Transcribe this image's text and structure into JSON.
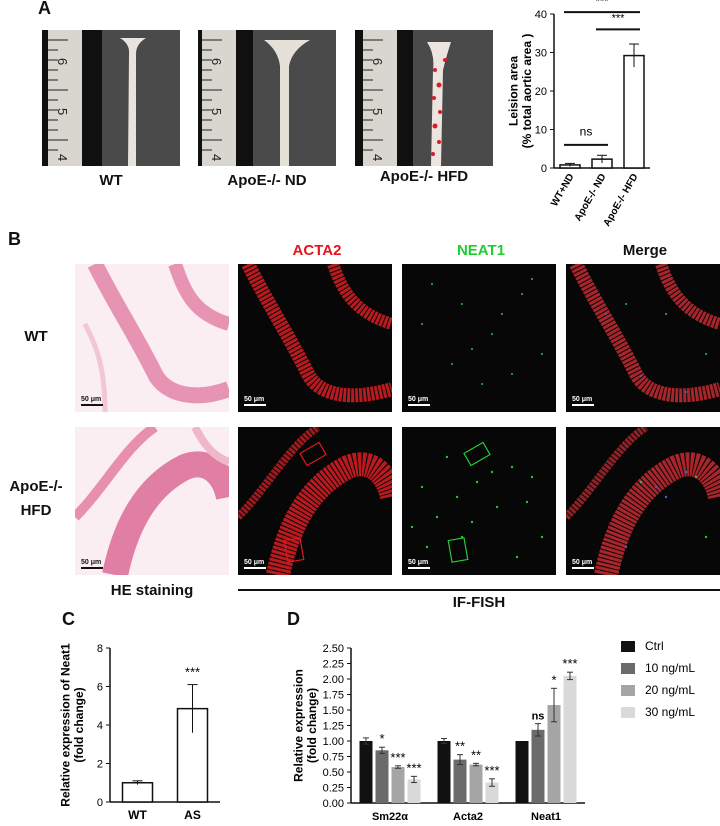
{
  "panels": {
    "a": "A",
    "b": "B",
    "c": "C",
    "d": "D"
  },
  "panel_a": {
    "photo_labels": [
      "WT",
      "ApoE-/- ND",
      "ApoE-/- HFD"
    ],
    "ruler_numbers": [
      "6",
      "5",
      "4"
    ]
  },
  "panel_b": {
    "columns": [
      "ACTA2",
      "NEAT1",
      "Merge"
    ],
    "rows": [
      "WT",
      "ApoE-/-",
      "HFD"
    ],
    "scale_bar": "50 μm",
    "he_label": "HE staining",
    "iffish_label": "IF-FISH",
    "colors": {
      "acta2": "#e8141c",
      "neat1": "#22cc33",
      "merge": "#ffffff"
    }
  },
  "chart_data": [
    {
      "type": "bar",
      "panel": "A",
      "categories": [
        "WT+ND",
        "ApoE-/- ND",
        "ApoE-/- HFD"
      ],
      "values": [
        0.8,
        2.3,
        29.2
      ],
      "errors": [
        0.4,
        1.0,
        3.0
      ],
      "ylabel": "Leision area\n(% total aortic area )",
      "ylim": [
        0,
        40
      ],
      "yticks": [
        0,
        10,
        20,
        30,
        40
      ],
      "significance": [
        {
          "from": 0,
          "to": 1,
          "label": "ns"
        },
        {
          "from": 1,
          "to": 2,
          "label": "***"
        },
        {
          "from": 0,
          "to": 2,
          "label": "***"
        }
      ]
    },
    {
      "type": "bar",
      "panel": "C",
      "categories": [
        "WT",
        "AS"
      ],
      "values": [
        1.0,
        4.85
      ],
      "errors": [
        0.1,
        1.25
      ],
      "ylabel": "Relative expression of Neat1\n(fold change)",
      "ylim": [
        0,
        8
      ],
      "yticks": [
        0,
        2,
        4,
        6,
        8
      ],
      "annotations": [
        "",
        "***"
      ]
    },
    {
      "type": "bar",
      "panel": "D",
      "categories": [
        "Sm22α",
        "Acta2",
        "Neat1"
      ],
      "series": [
        {
          "name": "Ctrl",
          "color": "#111111",
          "values": [
            1.0,
            1.0,
            1.0
          ],
          "errors": [
            0.05,
            0.04,
            0.0
          ],
          "stars": [
            "",
            "",
            ""
          ]
        },
        {
          "name": "10 ng/mL",
          "color": "#6b6b6b",
          "values": [
            0.85,
            0.7,
            1.18
          ],
          "errors": [
            0.05,
            0.08,
            0.1
          ],
          "stars": [
            "*",
            "**",
            "ns"
          ]
        },
        {
          "name": "20 ng/mL",
          "color": "#a5a5a5",
          "values": [
            0.58,
            0.62,
            1.58
          ],
          "errors": [
            0.02,
            0.02,
            0.27
          ],
          "stars": [
            "***",
            "**",
            "*"
          ]
        },
        {
          "name": "30 ng/mL",
          "color": "#d9d9d9",
          "values": [
            0.38,
            0.33,
            2.05
          ],
          "errors": [
            0.05,
            0.06,
            0.06
          ],
          "stars": [
            "***",
            "***",
            "***"
          ]
        }
      ],
      "ylabel": "Relative expression\n(fold change)",
      "ylim": [
        0,
        2.5
      ],
      "yticks": [
        "0.00",
        "0.25",
        "0.50",
        "0.75",
        "1.00",
        "1.25",
        "1.50",
        "1.75",
        "2.00",
        "2.25",
        "2.50"
      ],
      "legend": "right"
    }
  ]
}
